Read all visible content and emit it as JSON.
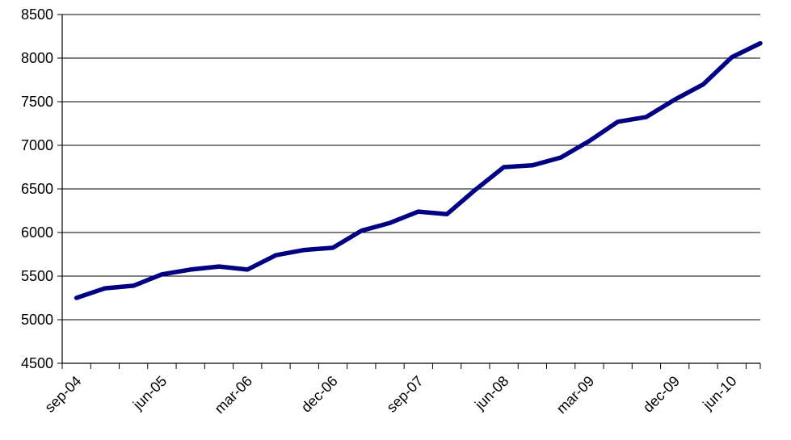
{
  "chart_data": {
    "type": "line",
    "title": "",
    "xlabel": "",
    "ylabel": "",
    "ylim": [
      4500,
      8500
    ],
    "yticks": [
      4500,
      5000,
      5500,
      6000,
      6500,
      7000,
      7500,
      8000,
      8500
    ],
    "grid": true,
    "legend": "none",
    "line_color": "#000080",
    "x_tick_labels": [
      "sep-04",
      "jun-05",
      "mar-06",
      "dec-06",
      "sep-07",
      "jun-08",
      "mar-09",
      "dec-09",
      "jun-10"
    ],
    "categories": [
      "sep-04",
      "dec-04",
      "mar-05",
      "jun-05",
      "sep-05",
      "dec-05",
      "mar-06",
      "jun-06",
      "sep-06",
      "dec-06",
      "mar-07",
      "jun-07",
      "sep-07",
      "dec-07",
      "mar-08",
      "jun-08",
      "sep-08",
      "dec-08",
      "mar-09",
      "jun-09",
      "sep-09",
      "dec-09",
      "mar-10",
      "jun-10",
      "sep-10"
    ],
    "series": [
      {
        "values": [
          5250,
          5360,
          5390,
          5520,
          5575,
          5610,
          5575,
          5740,
          5800,
          5825,
          6020,
          6110,
          6240,
          6210,
          6490,
          6750,
          6770,
          6860,
          7050,
          7270,
          7325,
          7525,
          7700,
          8010,
          8170
        ]
      }
    ]
  }
}
